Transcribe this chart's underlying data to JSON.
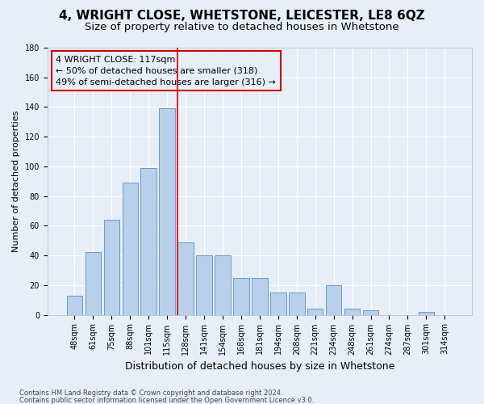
{
  "title": "4, WRIGHT CLOSE, WHETSTONE, LEICESTER, LE8 6QZ",
  "subtitle": "Size of property relative to detached houses in Whetstone",
  "xlabel": "Distribution of detached houses by size in Whetstone",
  "ylabel": "Number of detached properties",
  "categories": [
    "48sqm",
    "61sqm",
    "75sqm",
    "88sqm",
    "101sqm",
    "115sqm",
    "128sqm",
    "141sqm",
    "154sqm",
    "168sqm",
    "181sqm",
    "194sqm",
    "208sqm",
    "221sqm",
    "234sqm",
    "248sqm",
    "261sqm",
    "274sqm",
    "287sqm",
    "301sqm",
    "314sqm"
  ],
  "values": [
    13,
    42,
    64,
    89,
    99,
    139,
    49,
    40,
    40,
    25,
    25,
    15,
    15,
    4,
    20,
    4,
    3,
    0,
    0,
    2,
    0
  ],
  "bar_color": "#b8d0ea",
  "bar_edge_color": "#6699cc",
  "red_line_index": 6,
  "annotation_line1": "4 WRIGHT CLOSE: 117sqm",
  "annotation_line2": "← 50% of detached houses are smaller (318)",
  "annotation_line3": "49% of semi-detached houses are larger (316) →",
  "ylim": [
    0,
    180
  ],
  "yticks": [
    0,
    20,
    40,
    60,
    80,
    100,
    120,
    140,
    160,
    180
  ],
  "footer1": "Contains HM Land Registry data © Crown copyright and database right 2024.",
  "footer2": "Contains public sector information licensed under the Open Government Licence v3.0.",
  "bg_color": "#e8eef8",
  "grid_color": "#ffffff",
  "title_fontsize": 11,
  "subtitle_fontsize": 9.5,
  "annotation_fontsize": 8,
  "xlabel_fontsize": 9,
  "ylabel_fontsize": 8,
  "tick_fontsize": 7
}
